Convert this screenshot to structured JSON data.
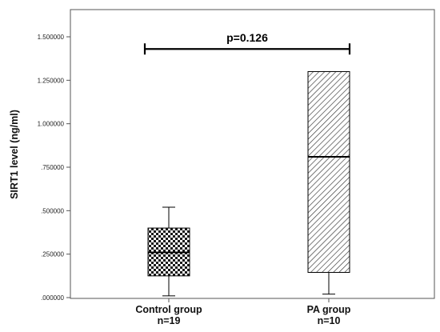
{
  "chart_data": {
    "type": "box",
    "ylabel": "SIRT1 level (ng/ml)",
    "ylim": [
      0,
      1.6
    ],
    "yticks": [
      ".000000",
      ".250000",
      ".500000",
      ".750000",
      "1.000000",
      "1.250000",
      "1.500000"
    ],
    "ytick_values": [
      0,
      0.25,
      0.5,
      0.75,
      1.0,
      1.25,
      1.5
    ],
    "categories": [
      {
        "label": "Control group",
        "n_label": "n=19"
      },
      {
        "label": "PA group",
        "n_label": "n=10"
      }
    ],
    "boxes": [
      {
        "min": 0.01,
        "q1": 0.125,
        "median": 0.26,
        "q3": 0.4,
        "max": 0.52,
        "fill_pattern": "checkered"
      },
      {
        "min": 0.02,
        "q1": 0.145,
        "median": 0.81,
        "q3": 1.3,
        "max": 1.3,
        "fill_pattern": "diagonal-hatch"
      }
    ],
    "annotation": {
      "text": "p=0.126",
      "y_value": 1.43
    },
    "grid": false
  }
}
